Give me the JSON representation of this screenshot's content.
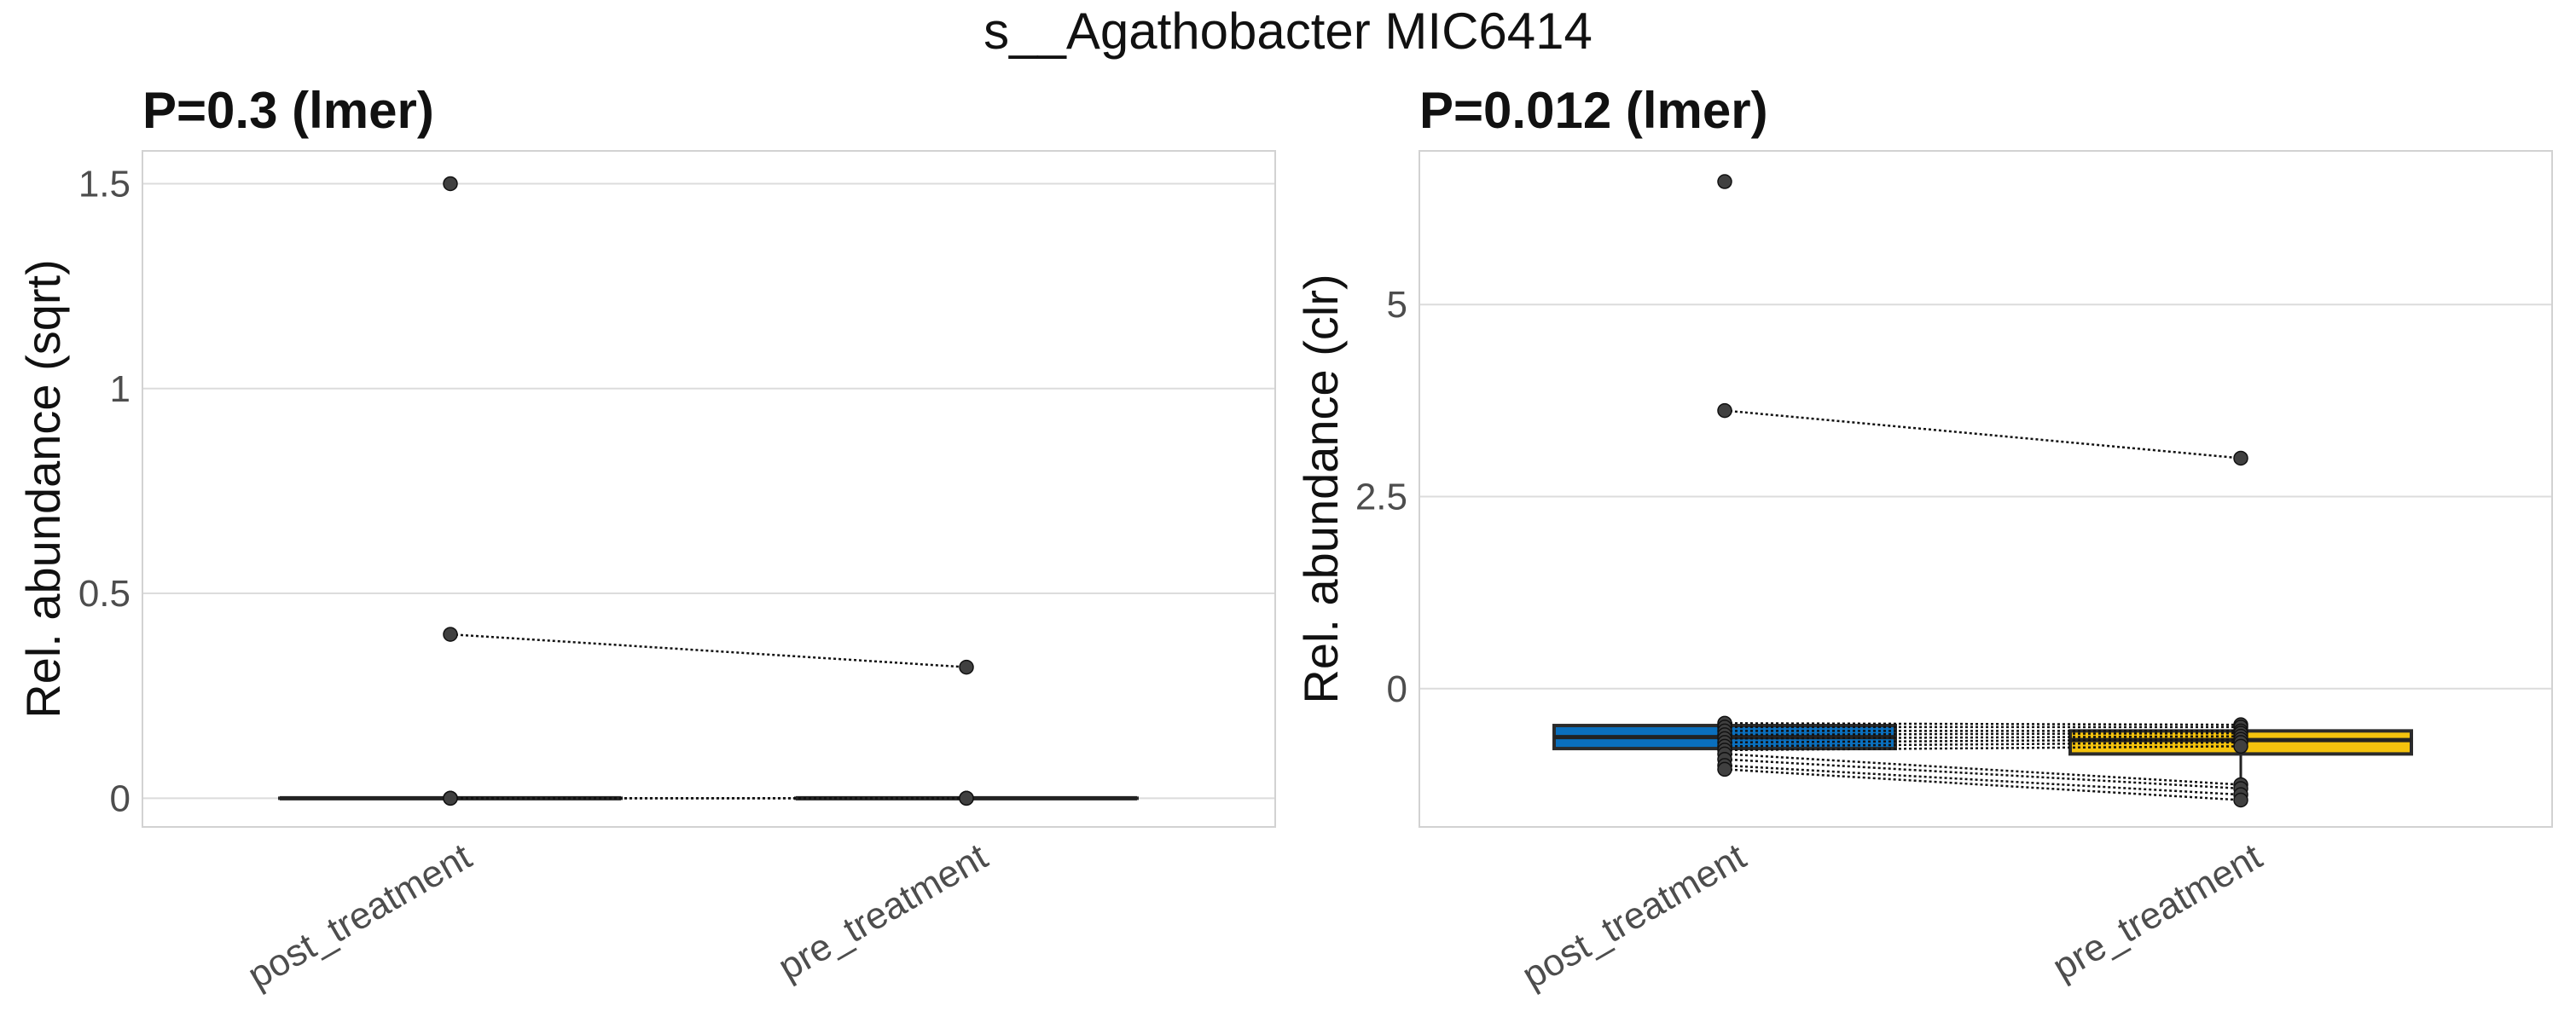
{
  "figure": {
    "title": "s__Agathobacter MIC6414"
  },
  "colors": {
    "post": "#0a6fbd",
    "pre": "#f4c20d",
    "grid": "#dcdcdc",
    "panel_border": "#d2d2d2",
    "point": "#404040"
  },
  "chart_data": [
    {
      "type": "paired-box",
      "title": "P=0.3 (lmer)",
      "xlabel": "",
      "ylabel": "Rel. abundance (sqrt)",
      "categories": [
        "post_treatment",
        "pre_treatment"
      ],
      "ylim": [
        -0.07,
        1.58
      ],
      "yticks": [
        0,
        0.5,
        1,
        1.5
      ],
      "ytick_labels": [
        "0",
        "0.5",
        "1",
        "1.5"
      ],
      "boxes": [
        {
          "category": "post_treatment",
          "q1": 0,
          "median": 0,
          "q3": 0,
          "whisker_low": 0,
          "whisker_high": 0
        },
        {
          "category": "pre_treatment",
          "q1": 0,
          "median": 0,
          "q3": 0,
          "whisker_low": 0,
          "whisker_high": 0
        }
      ],
      "pairs": [
        {
          "post": 0.4,
          "pre": 0.32
        },
        {
          "post": 0,
          "pre": 0
        },
        {
          "post": 0,
          "pre": 0
        },
        {
          "post": 0,
          "pre": 0
        }
      ],
      "unpaired_points": [
        {
          "category": "post_treatment",
          "value": 1.5
        }
      ]
    },
    {
      "type": "paired-box",
      "title": "P=0.012 (lmer)",
      "xlabel": "",
      "ylabel": "Rel. abundance (clr)",
      "categories": [
        "post_treatment",
        "pre_treatment"
      ],
      "ylim": [
        -1.8,
        7.0
      ],
      "yticks": [
        0,
        2.5,
        5
      ],
      "ytick_labels": [
        "0",
        "2.5",
        "5"
      ],
      "boxes": [
        {
          "category": "post_treatment",
          "q1": -0.78,
          "median": -0.63,
          "q3": -0.48,
          "whisker_low": -1.05,
          "whisker_high": -0.45
        },
        {
          "category": "pre_treatment",
          "q1": -0.85,
          "median": -0.67,
          "q3": -0.55,
          "whisker_low": -1.45,
          "whisker_high": -0.47
        }
      ],
      "pairs": [
        {
          "post": 3.62,
          "pre": 3.0
        },
        {
          "post": -0.45,
          "pre": -0.47
        },
        {
          "post": -0.5,
          "pre": -0.5
        },
        {
          "post": -0.55,
          "pre": -0.55
        },
        {
          "post": -0.6,
          "pre": -0.58
        },
        {
          "post": -0.65,
          "pre": -0.62
        },
        {
          "post": -0.7,
          "pre": -0.66
        },
        {
          "post": -0.75,
          "pre": -0.7
        },
        {
          "post": -0.8,
          "pre": -0.75
        },
        {
          "post": -0.85,
          "pre": -1.25
        },
        {
          "post": -0.92,
          "pre": -1.3
        },
        {
          "post": -1.0,
          "pre": -1.38
        },
        {
          "post": -1.05,
          "pre": -1.45
        }
      ],
      "unpaired_points": [
        {
          "category": "post_treatment",
          "value": 6.6
        }
      ]
    }
  ]
}
